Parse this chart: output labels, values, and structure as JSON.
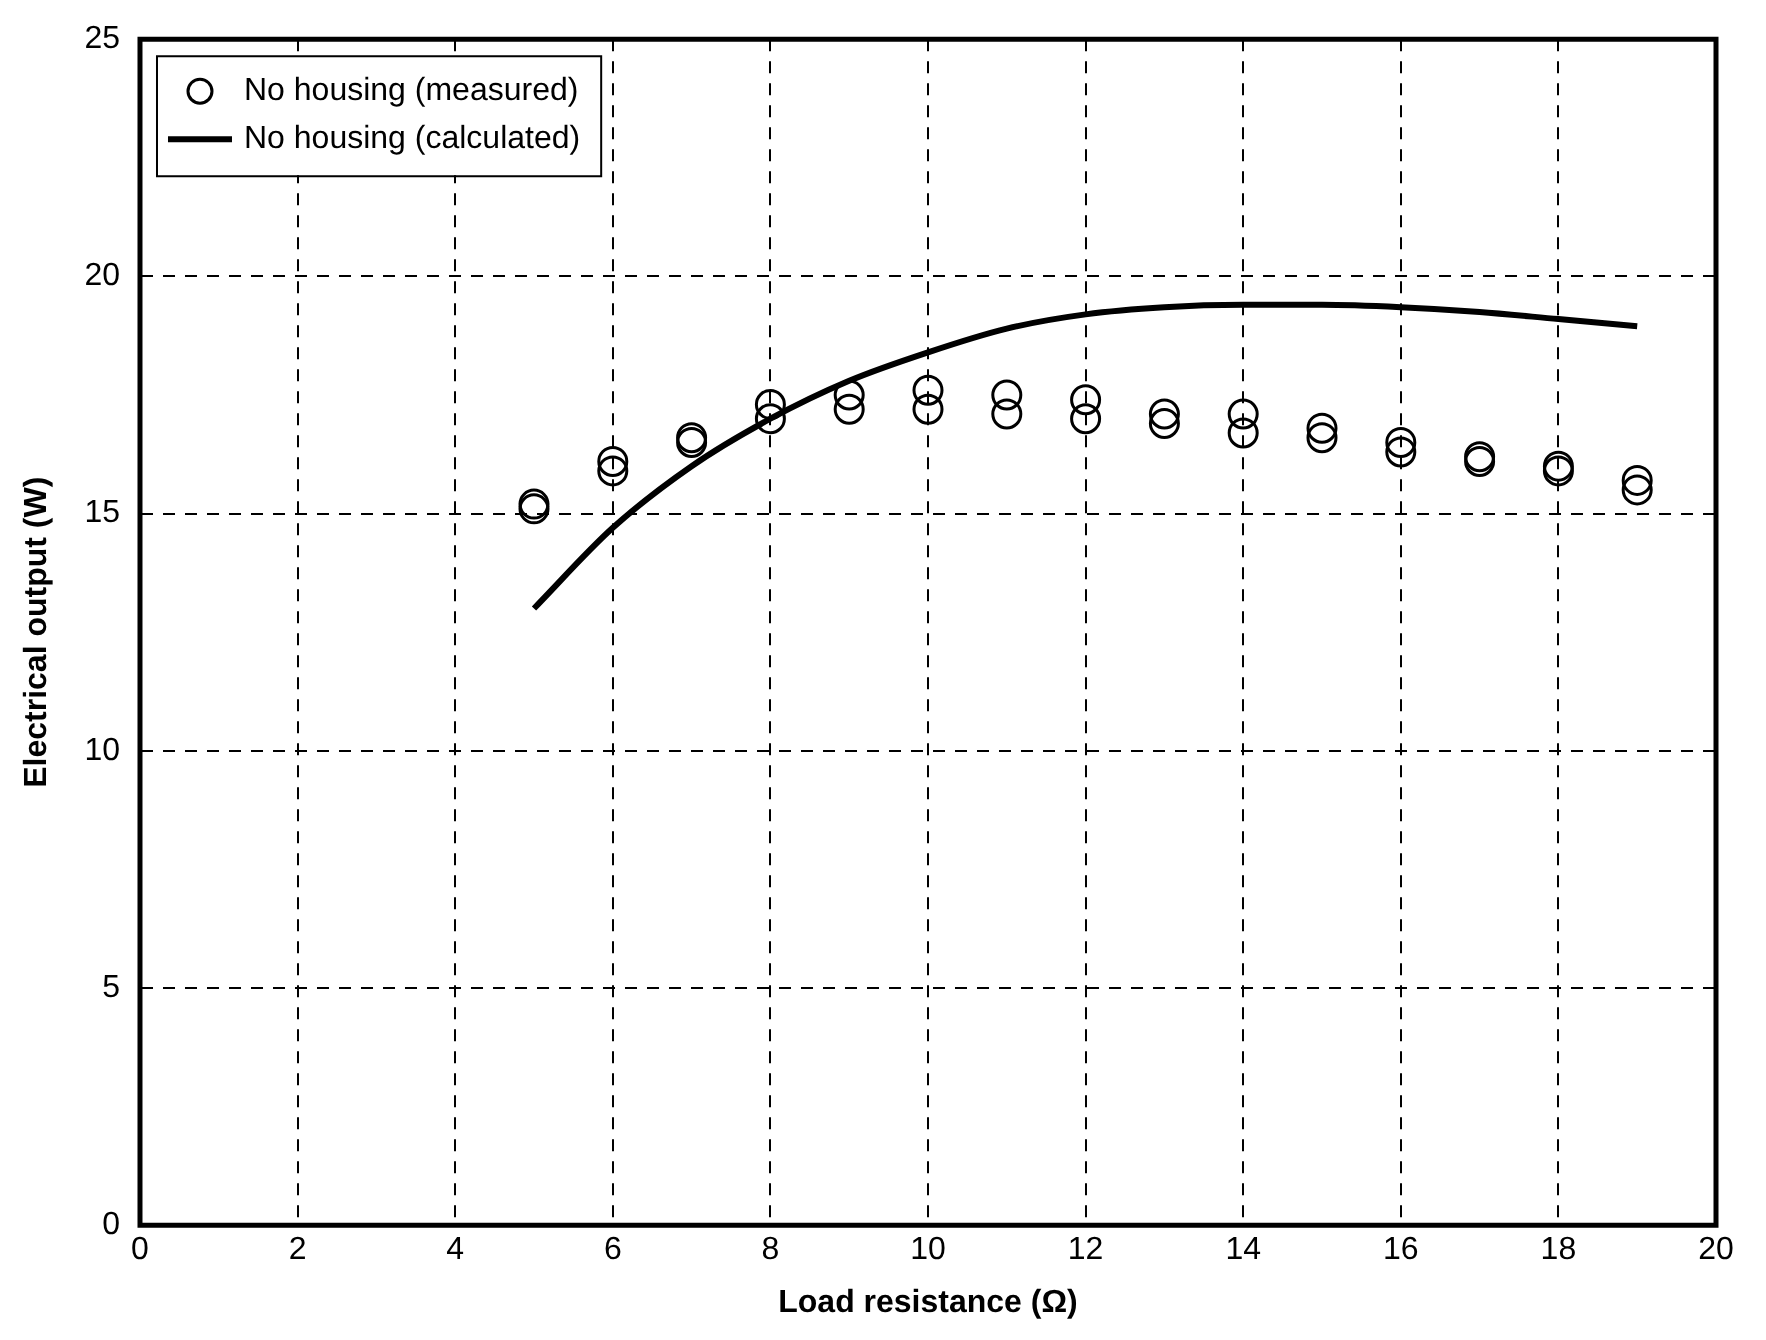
{
  "chart_data": {
    "type": "scatter",
    "xlabel": "Load resistance (Ω)",
    "ylabel": "Electrical output (W)",
    "xlim": [
      0,
      20
    ],
    "xticks": [
      0,
      2,
      4,
      6,
      8,
      10,
      12,
      14,
      16,
      18,
      20
    ],
    "ylim": [
      0,
      25
    ],
    "yticks": [
      0,
      5,
      10,
      15,
      20,
      25
    ],
    "grid": true,
    "legend": "top left",
    "marker": "circle",
    "series": [
      {
        "name": "No housing (measured)",
        "color": "#000000",
        "x": [
          5,
          5,
          6,
          6,
          7,
          7,
          8,
          8,
          9,
          9,
          10,
          10,
          11,
          11,
          12,
          12,
          13,
          13,
          14,
          14,
          15,
          15,
          16,
          16,
          17,
          17,
          18,
          18,
          19,
          19
        ],
        "values": [
          15.2,
          15.1,
          16.1,
          15.9,
          16.6,
          16.5,
          17.3,
          17.0,
          17.5,
          17.2,
          17.6,
          17.2,
          17.5,
          17.1,
          17.4,
          17.0,
          17.1,
          16.9,
          17.1,
          16.7,
          16.8,
          16.6,
          16.5,
          16.3,
          16.2,
          16.1,
          16.0,
          15.9,
          15.7,
          15.5
        ]
      },
      {
        "name": "No housing (calculated)",
        "type": "line",
        "marker": "none",
        "line_style": "solid",
        "color": "#000000",
        "x": [
          5,
          6,
          7,
          8,
          9,
          10,
          11,
          12,
          13,
          14,
          15,
          16,
          17,
          18,
          19
        ],
        "values": [
          13.0,
          14.7,
          16.0,
          17.0,
          17.8,
          18.4,
          18.9,
          19.2,
          19.35,
          19.4,
          19.4,
          19.35,
          19.25,
          19.1,
          18.95
        ]
      }
    ]
  }
}
